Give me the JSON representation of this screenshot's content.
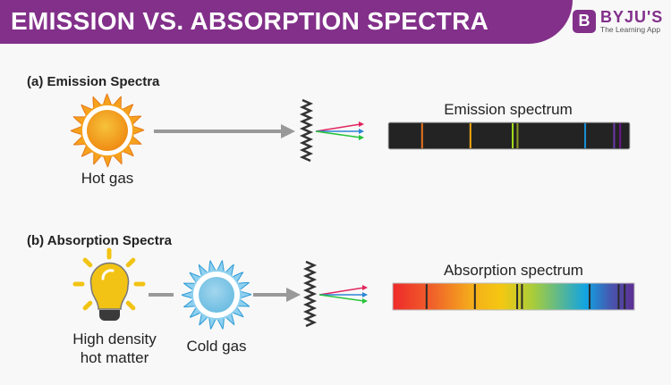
{
  "header": {
    "title": "EMISSION VS. ABSORPTION SPECTRA"
  },
  "logo": {
    "name": "BYJU'S",
    "tagline": "The Learning App",
    "mark": "B"
  },
  "emission": {
    "heading": "(a) Emission Spectra",
    "source_label": "Hot gas",
    "spectrum_label": "Emission spectrum",
    "lines": [
      {
        "pos": 0.14,
        "color": "#e5731f"
      },
      {
        "pos": 0.34,
        "color": "#f5a912"
      },
      {
        "pos": 0.515,
        "color": "#a6e01a"
      },
      {
        "pos": 0.535,
        "color": "#8a9a1c"
      },
      {
        "pos": 0.815,
        "color": "#1a8fd6"
      },
      {
        "pos": 0.935,
        "color": "#6a3aa8"
      },
      {
        "pos": 0.96,
        "color": "#6a1590"
      }
    ]
  },
  "absorption": {
    "heading": "(b) Absorption Spectra",
    "source_label_line1": "High density",
    "source_label_line2": "hot matter",
    "gas_label": "Cold gas",
    "spectrum_label": "Absorption spectrum",
    "lines": [
      0.14,
      0.34,
      0.515,
      0.535,
      0.815,
      0.935,
      0.96
    ]
  },
  "colors": {
    "brand": "#82308a",
    "arrow": "#999999",
    "ray_red": "#e0245e",
    "ray_blue": "#2d86d6",
    "ray_green": "#27c43a"
  }
}
